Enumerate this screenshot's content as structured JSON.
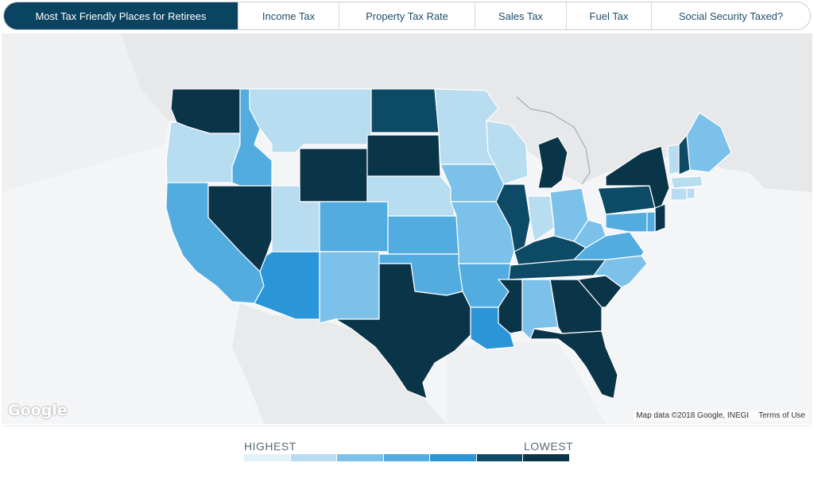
{
  "tabs": [
    {
      "label": "Most Tax Friendly Places for Retirees",
      "active": true
    },
    {
      "label": "Income Tax",
      "active": false
    },
    {
      "label": "Property Tax Rate",
      "active": false
    },
    {
      "label": "Sales Tax",
      "active": false
    },
    {
      "label": "Fuel Tax",
      "active": false
    },
    {
      "label": "Social Security Taxed?",
      "active": false
    }
  ],
  "map": {
    "google_logo": "Google",
    "map_data": "Map data ©2018 Google, INEGI",
    "terms": "Terms of Use",
    "states": {
      "WA": 6,
      "OR": 1,
      "CA": 3,
      "ID": 3,
      "NV": 6,
      "MT": 1,
      "WY": 6,
      "UT": 1,
      "AZ": 4,
      "CO": 3,
      "NM": 2,
      "ND": 5,
      "SD": 6,
      "NE": 1,
      "KS": 3,
      "OK": 3,
      "TX": 6,
      "MN": 1,
      "IA": 2,
      "MO": 2,
      "AR": 3,
      "LA": 4,
      "WI": 1,
      "IL": 5,
      "MI": 6,
      "IN": 1,
      "OH": 2,
      "KY": 5,
      "TN": 5,
      "MS": 6,
      "AL": 2,
      "GA": 6,
      "FL": 6,
      "SC": 6,
      "NC": 2,
      "VA": 3,
      "WV": 2,
      "PA": 5,
      "NY": 6,
      "NJ": 6,
      "MD": 3,
      "DE": 3,
      "VT": 1,
      "NH": 5,
      "ME": 2,
      "MA": 1,
      "CT": 1,
      "RI": 1
    }
  },
  "legend": {
    "high_label": "HIGHEST",
    "low_label": "LOWEST",
    "colors": [
      "#e3f1fa",
      "#b8dcf0",
      "#7cc1e9",
      "#52ace0",
      "#2b96d7",
      "#0d4a66",
      "#0a3549"
    ]
  }
}
